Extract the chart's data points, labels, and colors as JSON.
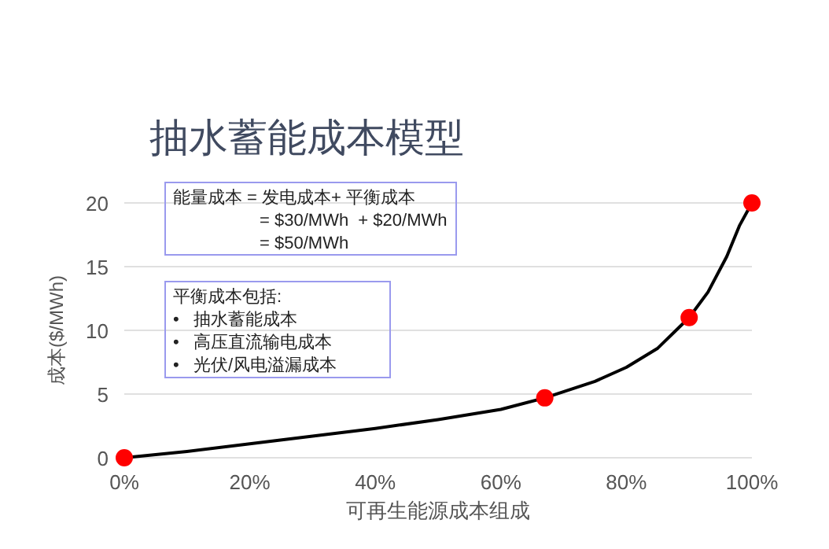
{
  "chart_data": {
    "type": "line",
    "title": "抽水蓄能成本模型",
    "xlabel": "可再生能源成本组成",
    "ylabel": "成本($/MWh)",
    "annotations": [
      "能量成本 = 发电成本+ 平衡成本\n                  = $30/MWh  + $20/MWh\n                  = $50/MWh",
      "平衡成本包括:\n•   抽水蓄能成本\n•   高压直流输电成本\n•   光伏/风电溢漏成本"
    ],
    "series": [
      {
        "color": "#000000",
        "marker": "none",
        "line_style": "solid",
        "x": [
          0,
          10,
          20,
          30,
          40,
          50,
          60,
          67,
          75,
          80,
          85,
          90,
          93,
          96,
          98,
          100
        ],
        "values": [
          0,
          0.5,
          1.1,
          1.7,
          2.3,
          3.0,
          3.8,
          4.7,
          6.0,
          7.1,
          8.6,
          11,
          13.0,
          15.8,
          18.2,
          20
        ]
      },
      {
        "type": "scatter",
        "color": "#ff0000",
        "marker": "circle",
        "x": [
          0,
          67,
          90,
          100
        ],
        "values": [
          0,
          4.7,
          11,
          20
        ]
      }
    ],
    "xlim": [
      0,
      100
    ],
    "ylim": [
      0,
      20
    ],
    "xticks": [
      {
        "value": 0,
        "label": "0%"
      },
      {
        "value": 20,
        "label": "20%"
      },
      {
        "value": 40,
        "label": "40%"
      },
      {
        "value": 60,
        "label": "60%"
      },
      {
        "value": 80,
        "label": "80%"
      },
      {
        "value": 100,
        "label": "100%"
      }
    ],
    "yticks": [
      0,
      5,
      10,
      15,
      20
    ],
    "grid": "y"
  }
}
